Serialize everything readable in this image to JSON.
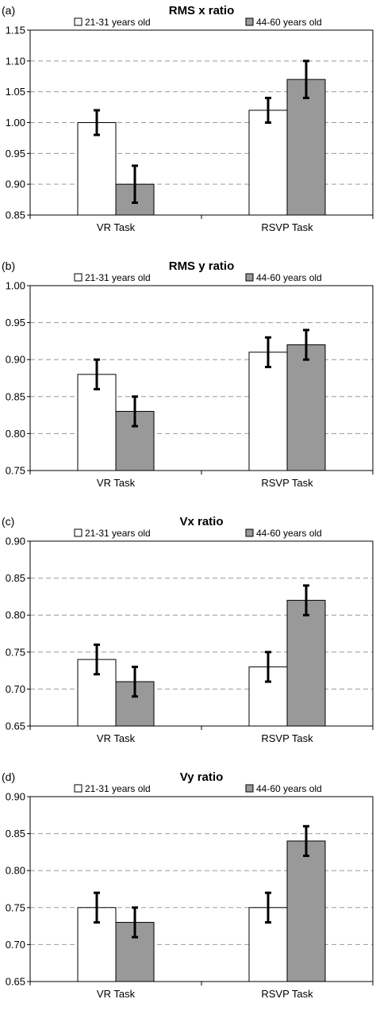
{
  "legend": {
    "series_labels": [
      "21-31 years old",
      "44-60 years old"
    ],
    "series_colors": [
      "#ffffff",
      "#999999"
    ]
  },
  "chart_data": [
    {
      "type": "bar",
      "panel": "(a)",
      "title": "RMS x ratio",
      "categories": [
        "VR Task",
        "RSVP Task"
      ],
      "ylim": [
        0.85,
        1.15
      ],
      "yticks": [
        "0.85",
        "0.90",
        "0.95",
        "1.00",
        "1.05",
        "1.10",
        "1.15"
      ],
      "grid": true,
      "series": [
        {
          "name": "21-31 years old",
          "values": [
            1.0,
            1.02
          ],
          "errors": [
            0.02,
            0.02
          ]
        },
        {
          "name": "44-60 years old",
          "values": [
            0.9,
            1.07
          ],
          "errors": [
            0.03,
            0.03
          ]
        }
      ]
    },
    {
      "type": "bar",
      "panel": "(b)",
      "title": "RMS y ratio",
      "categories": [
        "VR Task",
        "RSVP Task"
      ],
      "ylim": [
        0.75,
        1.0
      ],
      "yticks": [
        "0.75",
        "0.80",
        "0.85",
        "0.90",
        "0.95",
        "1.00"
      ],
      "grid": true,
      "series": [
        {
          "name": "21-31 years old",
          "values": [
            0.88,
            0.91
          ],
          "errors": [
            0.02,
            0.02
          ]
        },
        {
          "name": "44-60 years old",
          "values": [
            0.83,
            0.92
          ],
          "errors": [
            0.02,
            0.02
          ]
        }
      ]
    },
    {
      "type": "bar",
      "panel": "(c)",
      "title": "Vx ratio",
      "categories": [
        "VR Task",
        "RSVP Task"
      ],
      "ylim": [
        0.65,
        0.9
      ],
      "yticks": [
        "0.65",
        "0.70",
        "0.75",
        "0.80",
        "0.85",
        "0.90"
      ],
      "grid": true,
      "series": [
        {
          "name": "21-31 years old",
          "values": [
            0.74,
            0.73
          ],
          "errors": [
            0.02,
            0.02
          ]
        },
        {
          "name": "44-60 years old",
          "values": [
            0.71,
            0.82
          ],
          "errors": [
            0.02,
            0.02
          ]
        }
      ]
    },
    {
      "type": "bar",
      "panel": "(d)",
      "title": "Vy ratio",
      "categories": [
        "VR Task",
        "RSVP Task"
      ],
      "ylim": [
        0.65,
        0.9
      ],
      "yticks": [
        "0.65",
        "0.70",
        "0.75",
        "0.80",
        "0.85",
        "0.90"
      ],
      "grid": true,
      "series": [
        {
          "name": "21-31 years old",
          "values": [
            0.75,
            0.75
          ],
          "errors": [
            0.02,
            0.02
          ]
        },
        {
          "name": "44-60 years old",
          "values": [
            0.73,
            0.84
          ],
          "errors": [
            0.02,
            0.02
          ]
        }
      ]
    }
  ]
}
